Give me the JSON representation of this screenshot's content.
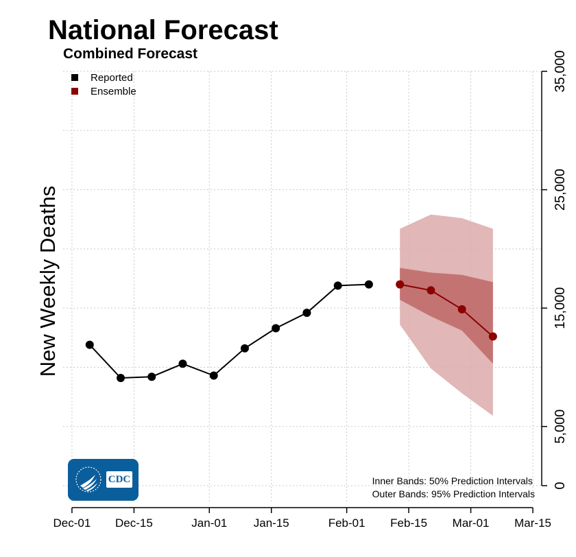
{
  "title": "National Forecast",
  "subtitle": "Combined Forecast",
  "legend": [
    {
      "label": "Reported",
      "color": "#000000"
    },
    {
      "label": "Ensemble",
      "color": "#8b0000"
    }
  ],
  "notes": {
    "inner": "Inner Bands: 50% Prediction Intervals",
    "outer": "Outer Bands: 95% Prediction Intervals"
  },
  "logo": {
    "text": "CDC"
  },
  "chart_data": {
    "type": "line",
    "xlabel": "",
    "ylabel": "New Weekly Deaths",
    "ylim": [
      0,
      35000
    ],
    "y_ticks": [
      0,
      5000,
      15000,
      25000,
      35000
    ],
    "y_tick_labels": [
      "0",
      "5,000",
      "15,000",
      "25,000",
      "35,000"
    ],
    "x_ticks": [
      "Dec-01",
      "Dec-15",
      "Jan-01",
      "Jan-15",
      "Feb-01",
      "Feb-15",
      "Mar-01",
      "Mar-15"
    ],
    "x_tick_dates": [
      "2020-12-01",
      "2020-12-15",
      "2021-01-01",
      "2021-01-15",
      "2021-02-01",
      "2021-02-15",
      "2021-03-01",
      "2021-03-15"
    ],
    "xlim": [
      "2020-11-29",
      "2021-03-17"
    ],
    "y_axis_side": "right",
    "grid": true,
    "legend_position": "top-left",
    "series": [
      {
        "name": "Reported",
        "color": "#000000",
        "x": [
          "2020-12-05",
          "2020-12-12",
          "2020-12-19",
          "2020-12-26",
          "2021-01-02",
          "2021-01-09",
          "2021-01-16",
          "2021-01-23",
          "2021-01-30",
          "2021-02-06"
        ],
        "values": [
          11900,
          9100,
          9200,
          10300,
          9300,
          11600,
          13300,
          14600,
          16900,
          17000
        ]
      },
      {
        "name": "Ensemble",
        "color": "#8b0000",
        "x": [
          "2021-02-13",
          "2021-02-20",
          "2021-02-27",
          "2021-03-06"
        ],
        "values": [
          17000,
          16500,
          14900,
          12600
        ],
        "inner_lower": [
          15700,
          14300,
          13100,
          10300
        ],
        "inner_upper": [
          18400,
          18000,
          17800,
          17200
        ],
        "outer_lower": [
          13600,
          9900,
          7800,
          5900
        ],
        "outer_upper": [
          21700,
          22900,
          22600,
          21700
        ]
      }
    ]
  }
}
